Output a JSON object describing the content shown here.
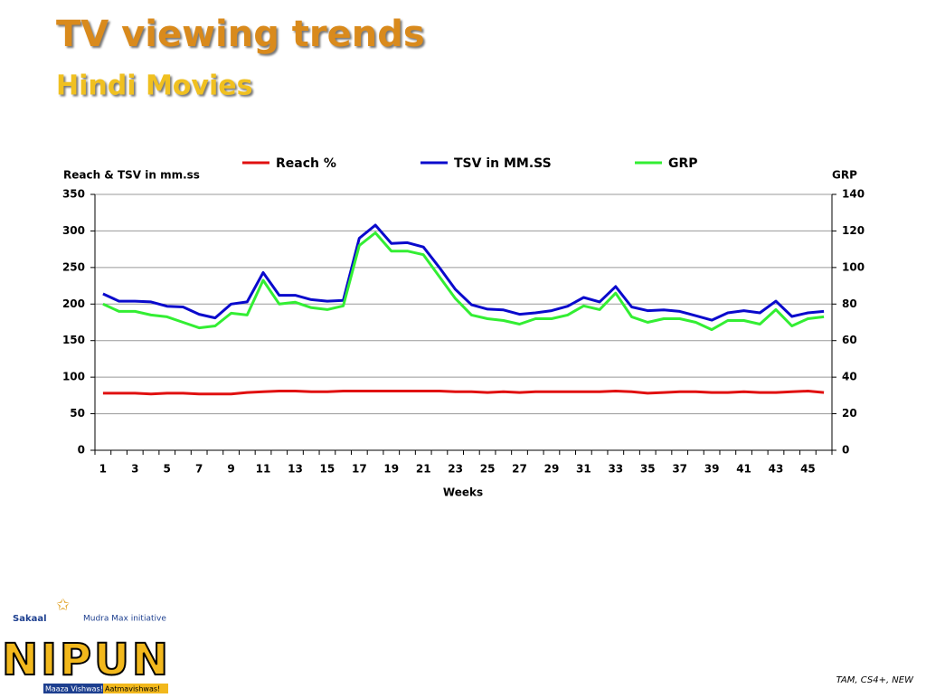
{
  "chart_data": {
    "type": "line",
    "title": "TV viewing trends",
    "subtitle": "Hindi Movies",
    "y_label": "Reach & TSV in mm.ss",
    "y2_label": "GRP",
    "x_label": "Weeks",
    "categories": [
      "1",
      null,
      "3",
      null,
      "5",
      null,
      "7",
      null,
      "9",
      null,
      "11",
      null,
      "13",
      null,
      "15",
      null,
      "17",
      null,
      "19",
      null,
      "21",
      null,
      "23",
      null,
      "25",
      null,
      "27",
      null,
      "29",
      null,
      "31",
      null,
      "33",
      null,
      "35",
      null,
      "37",
      null,
      "39",
      null,
      "41",
      null,
      "43",
      null,
      "45",
      null
    ],
    "series": [
      {
        "name": "Reach %",
        "color": "#e01010",
        "values": [
          78,
          78,
          78,
          77,
          78,
          78,
          77,
          77,
          77,
          79,
          80,
          81,
          81,
          80,
          80,
          81,
          81,
          81,
          81,
          81,
          81,
          81,
          80,
          80,
          79,
          80,
          79,
          80,
          80,
          80,
          80,
          80,
          81,
          80,
          78,
          79,
          80,
          80,
          79,
          79,
          80,
          79,
          79,
          80,
          81,
          79
        ]
      },
      {
        "name": "TSV in MM.SS",
        "color": "#0a0acc",
        "values": [
          214,
          204,
          204,
          203,
          197,
          196,
          186,
          181,
          200,
          203,
          243,
          212,
          212,
          206,
          204,
          205,
          290,
          308,
          283,
          284,
          278,
          250,
          220,
          199,
          193,
          192,
          186,
          188,
          191,
          197,
          209,
          203,
          224,
          196,
          191,
          192,
          190,
          184,
          178,
          188,
          191,
          188,
          204,
          183,
          188,
          190
        ]
      },
      {
        "name": "GRP",
        "color": "#33ee33",
        "axis": "y2",
        "values": [
          80,
          76,
          76,
          74,
          73,
          70,
          67,
          68,
          75,
          74,
          93,
          80,
          81,
          78,
          77,
          79,
          112,
          119,
          109,
          109,
          107,
          95,
          83,
          74,
          72,
          71,
          69,
          72,
          72,
          74,
          79,
          77,
          86,
          73,
          70,
          72,
          72,
          70,
          66,
          71,
          71,
          69,
          77,
          68,
          72,
          73
        ]
      }
    ],
    "ylim": [
      0,
      350
    ],
    "yticks": [
      0,
      50,
      100,
      150,
      200,
      250,
      300,
      350
    ],
    "y2lim": [
      0,
      140
    ],
    "y2ticks": [
      0,
      20,
      40,
      60,
      80,
      100,
      120,
      140
    ],
    "grid": true,
    "legend": "top"
  },
  "logo": {
    "brand": "Sakaal",
    "tagline": "Mudra Max initiative",
    "name": "NIPUN",
    "motto_1": "Maaza Vishwas!",
    "motto_2": "Aatmavishwas!"
  },
  "source": "TAM, CS4+, NEW"
}
